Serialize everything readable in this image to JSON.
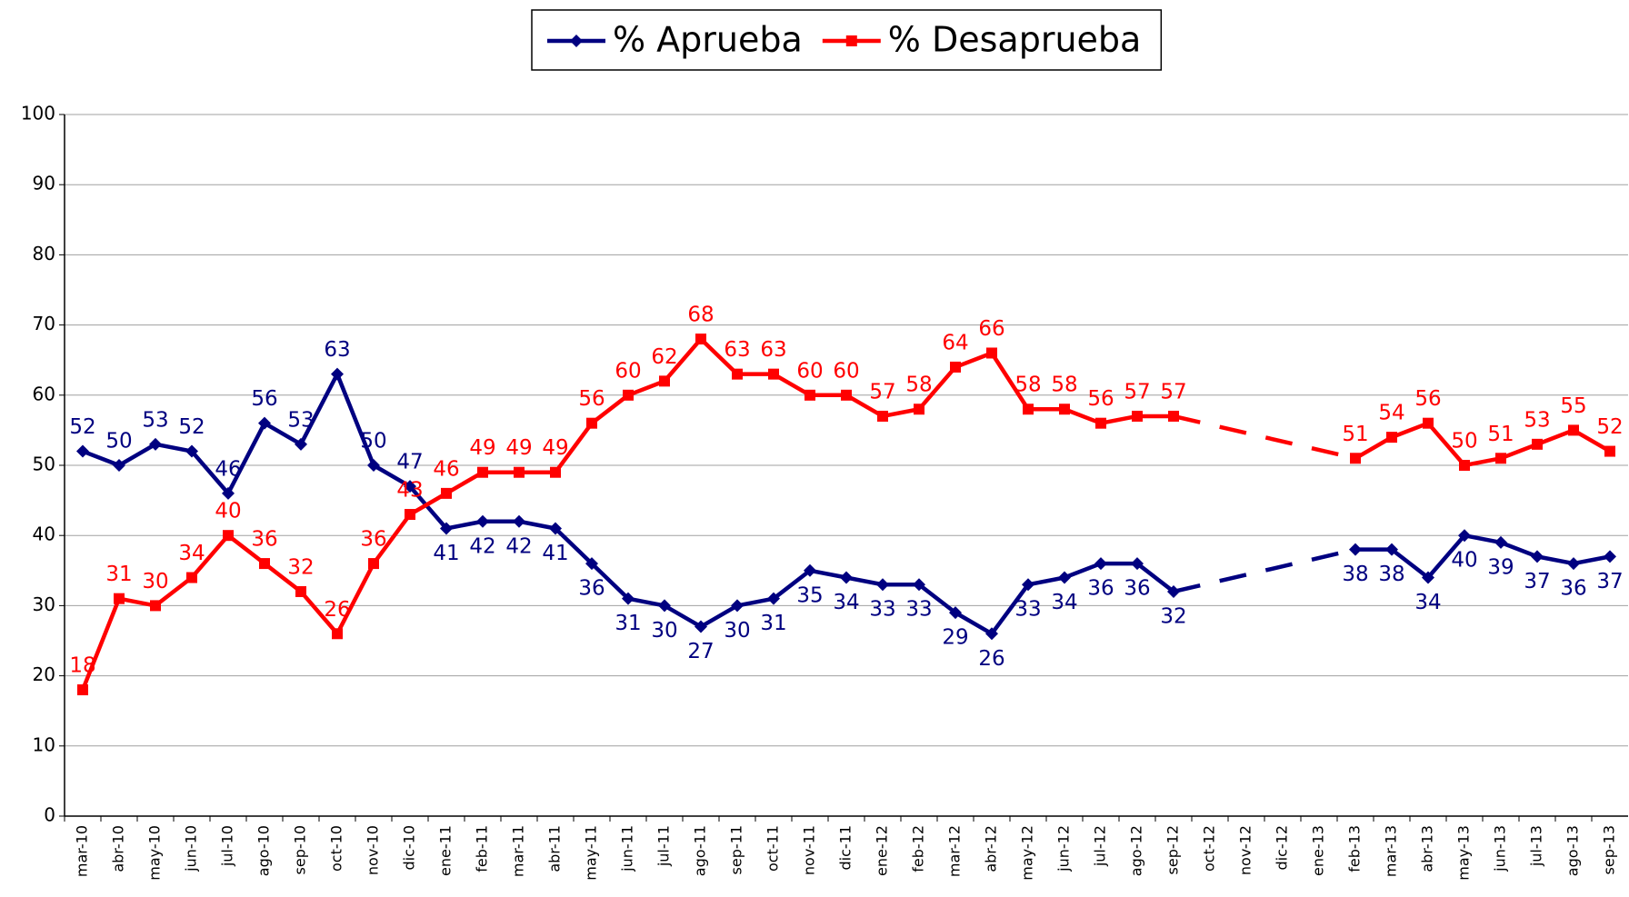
{
  "chart_data": {
    "type": "line",
    "categories": [
      "mar-10",
      "abr-10",
      "may-10",
      "jun-10",
      "jul-10",
      "ago-10",
      "sep-10",
      "oct-10",
      "nov-10",
      "dic-10",
      "ene-11",
      "feb-11",
      "mar-11",
      "abr-11",
      "may-11",
      "jun-11",
      "jul-11",
      "ago-11",
      "sep-11",
      "oct-11",
      "nov-11",
      "dic-11",
      "ene-12",
      "feb-12",
      "mar-12",
      "abr-12",
      "may-12",
      "jun-12",
      "jul-12",
      "ago-12",
      "sep-12",
      "oct-12",
      "nov-12",
      "dic-12",
      "ene-13",
      "feb-13",
      "mar-13",
      "abr-13",
      "may-13",
      "jun-13",
      "jul-13",
      "ago-13",
      "sep-13"
    ],
    "series": [
      {
        "name": "% Aprueba",
        "color": "#000080",
        "marker": "diamond",
        "values": [
          52,
          50,
          53,
          52,
          46,
          56,
          53,
          63,
          50,
          47,
          41,
          42,
          42,
          41,
          36,
          31,
          30,
          27,
          30,
          31,
          35,
          34,
          33,
          33,
          29,
          26,
          33,
          34,
          36,
          36,
          32,
          null,
          null,
          null,
          null,
          38,
          38,
          34,
          40,
          39,
          37,
          36,
          37
        ]
      },
      {
        "name": "% Desaprueba",
        "color": "#ff0000",
        "marker": "square",
        "values": [
          18,
          31,
          30,
          34,
          40,
          36,
          32,
          26,
          36,
          43,
          46,
          49,
          49,
          49,
          56,
          60,
          62,
          68,
          63,
          63,
          60,
          60,
          57,
          58,
          64,
          66,
          58,
          58,
          56,
          57,
          57,
          null,
          null,
          null,
          null,
          51,
          54,
          56,
          50,
          51,
          53,
          55,
          52
        ]
      }
    ],
    "ylim": [
      0,
      100
    ],
    "yticks": [
      0,
      10,
      20,
      30,
      40,
      50,
      60,
      70,
      80,
      90,
      100
    ],
    "grid": true,
    "legend": "top"
  }
}
